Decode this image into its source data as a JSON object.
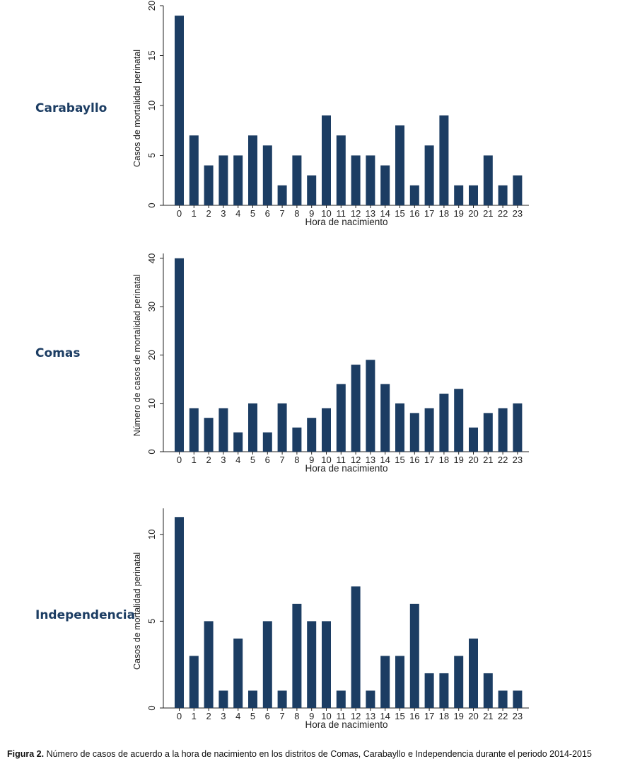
{
  "chart_data": [
    {
      "type": "bar",
      "panel_label": "Carabayllo",
      "categories": [
        "0",
        "1",
        "2",
        "3",
        "4",
        "5",
        "6",
        "7",
        "8",
        "9",
        "10",
        "11",
        "12",
        "13",
        "14",
        "15",
        "16",
        "17",
        "18",
        "19",
        "20",
        "21",
        "22",
        "23"
      ],
      "values": [
        19,
        7,
        4,
        5,
        5,
        7,
        6,
        2,
        5,
        3,
        9,
        7,
        5,
        5,
        4,
        8,
        2,
        6,
        9,
        2,
        2,
        5,
        2,
        3
      ],
      "xlabel": "Hora de nacimiento",
      "ylabel": "Casos de mortalidad perinatal",
      "yticks": [
        0,
        5,
        10,
        15,
        20
      ],
      "ylim": [
        0,
        20
      ],
      "color": "#1c3d63"
    },
    {
      "type": "bar",
      "panel_label": "Comas",
      "categories": [
        "0",
        "1",
        "2",
        "3",
        "4",
        "5",
        "6",
        "7",
        "8",
        "9",
        "10",
        "11",
        "12",
        "13",
        "14",
        "15",
        "16",
        "17",
        "18",
        "19",
        "20",
        "21",
        "22",
        "23"
      ],
      "values": [
        40,
        9,
        7,
        9,
        4,
        10,
        4,
        10,
        5,
        7,
        9,
        14,
        18,
        19,
        14,
        10,
        8,
        9,
        12,
        13,
        5,
        8,
        9,
        10
      ],
      "xlabel": "Hora de nacimiento",
      "ylabel": "Número de casos de mortalidad perinatal",
      "yticks": [
        0,
        10,
        20,
        30,
        40
      ],
      "ylim": [
        0,
        41
      ],
      "color": "#1c3d63"
    },
    {
      "type": "bar",
      "panel_label": "Independencia",
      "categories": [
        "0",
        "1",
        "2",
        "3",
        "4",
        "5",
        "6",
        "7",
        "8",
        "9",
        "10",
        "11",
        "12",
        "13",
        "14",
        "15",
        "16",
        "17",
        "18",
        "19",
        "20",
        "21",
        "22",
        "23"
      ],
      "values": [
        11,
        3,
        5,
        1,
        4,
        1,
        5,
        1,
        6,
        5,
        5,
        1,
        7,
        1,
        3,
        3,
        6,
        2,
        2,
        3,
        4,
        2,
        1,
        1
      ],
      "xlabel": "Hora de nacimiento",
      "ylabel": "Casos de mortalidad perinatal",
      "yticks": [
        0,
        5,
        10
      ],
      "ylim": [
        0,
        11.5
      ],
      "color": "#1c3d63"
    }
  ],
  "caption": {
    "prefix": "Figura 2.",
    "text": "Número de casos de acuerdo a la hora de nacimiento en los distritos de Comas, Carabayllo e Independencia durante el periodo 2014-2015"
  }
}
